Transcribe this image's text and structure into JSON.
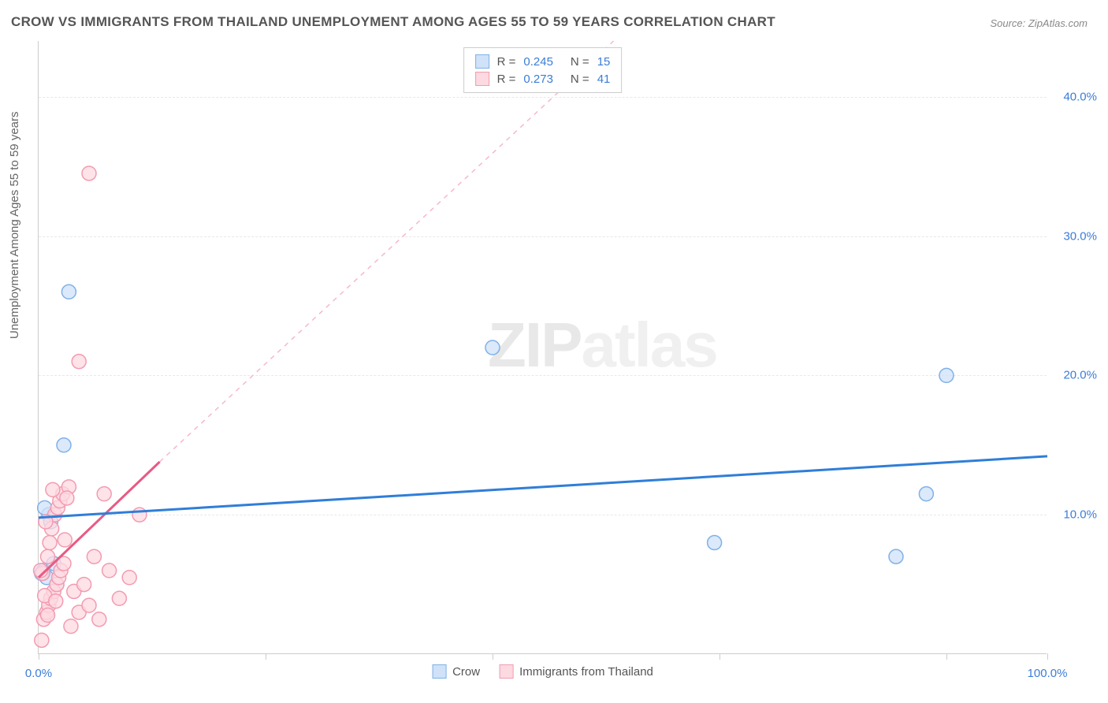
{
  "title": "CROW VS IMMIGRANTS FROM THAILAND UNEMPLOYMENT AMONG AGES 55 TO 59 YEARS CORRELATION CHART",
  "source": "Source: ZipAtlas.com",
  "y_axis_label": "Unemployment Among Ages 55 to 59 years",
  "watermark_a": "ZIP",
  "watermark_b": "atlas",
  "chart": {
    "type": "scatter",
    "xlim": [
      0,
      100
    ],
    "ylim": [
      0,
      44
    ],
    "x_ticks": [
      0,
      22.5,
      45,
      67.5,
      90,
      100
    ],
    "x_tick_labels": {
      "0": "0.0%",
      "100": "100.0%"
    },
    "y_gridlines": [
      10,
      20,
      30,
      40
    ],
    "y_tick_labels": {
      "10": "10.0%",
      "20": "20.0%",
      "30": "30.0%",
      "40": "40.0%"
    },
    "background_color": "#ffffff",
    "grid_color": "#e8e8e8",
    "axis_color": "#cccccc",
    "series": [
      {
        "name": "Crow",
        "color_fill": "#cfe2f8",
        "color_stroke": "#7fb1e8",
        "marker_radius": 9,
        "R": "0.245",
        "N": "15",
        "trend": {
          "x1": 0,
          "y1": 9.8,
          "x2": 100,
          "y2": 14.2,
          "color": "#2f7ed8",
          "width": 3,
          "dash": "none"
        },
        "points": [
          [
            0.5,
            6.0
          ],
          [
            0.8,
            5.5
          ],
          [
            1.0,
            10.0
          ],
          [
            1.2,
            9.5
          ],
          [
            1.5,
            6.5
          ],
          [
            1.8,
            5.0
          ],
          [
            2.5,
            15.0
          ],
          [
            3.0,
            26.0
          ],
          [
            0.6,
            10.5
          ],
          [
            45.0,
            22.0
          ],
          [
            67.0,
            8.0
          ],
          [
            85.0,
            7.0
          ],
          [
            88.0,
            11.5
          ],
          [
            90.0,
            20.0
          ],
          [
            0.3,
            5.8
          ]
        ]
      },
      {
        "name": "Immigrants from Thailand",
        "color_fill": "#fdd9e1",
        "color_stroke": "#f39bb0",
        "marker_radius": 9,
        "R": "0.273",
        "N": "41",
        "trend_solid": {
          "x1": 0,
          "y1": 5.5,
          "x2": 12,
          "y2": 13.8,
          "color": "#e85a84",
          "width": 3
        },
        "trend_dash": {
          "x1": 12,
          "y1": 13.8,
          "x2": 57,
          "y2": 44,
          "color": "#f6b9c8",
          "width": 1.5
        },
        "points": [
          [
            0.3,
            1.0
          ],
          [
            0.5,
            2.5
          ],
          [
            0.8,
            3.0
          ],
          [
            1.0,
            3.5
          ],
          [
            1.2,
            4.0
          ],
          [
            1.5,
            4.5
          ],
          [
            1.8,
            5.0
          ],
          [
            2.0,
            5.5
          ],
          [
            2.2,
            6.0
          ],
          [
            2.5,
            6.5
          ],
          [
            0.4,
            5.8
          ],
          [
            0.6,
            4.2
          ],
          [
            0.9,
            7.0
          ],
          [
            1.1,
            8.0
          ],
          [
            1.3,
            9.0
          ],
          [
            1.6,
            10.0
          ],
          [
            1.9,
            10.5
          ],
          [
            2.1,
            11.0
          ],
          [
            2.4,
            11.5
          ],
          [
            3.0,
            12.0
          ],
          [
            3.5,
            4.5
          ],
          [
            4.0,
            3.0
          ],
          [
            4.5,
            5.0
          ],
          [
            5.0,
            3.5
          ],
          [
            5.5,
            7.0
          ],
          [
            6.0,
            2.5
          ],
          [
            7.0,
            6.0
          ],
          [
            8.0,
            4.0
          ],
          [
            9.0,
            5.5
          ],
          [
            10.0,
            10.0
          ],
          [
            1.4,
            11.8
          ],
          [
            2.8,
            11.2
          ],
          [
            3.2,
            2.0
          ],
          [
            0.7,
            9.5
          ],
          [
            1.7,
            3.8
          ],
          [
            5.0,
            34.5
          ],
          [
            4.0,
            21.0
          ],
          [
            6.5,
            11.5
          ],
          [
            0.2,
            6.0
          ],
          [
            0.9,
            2.8
          ],
          [
            2.6,
            8.2
          ]
        ]
      }
    ]
  },
  "legend_bottom": [
    {
      "label": "Crow",
      "fill": "#cfe2f8",
      "stroke": "#7fb1e8"
    },
    {
      "label": "Immigrants from Thailand",
      "fill": "#fdd9e1",
      "stroke": "#f39bb0"
    }
  ]
}
